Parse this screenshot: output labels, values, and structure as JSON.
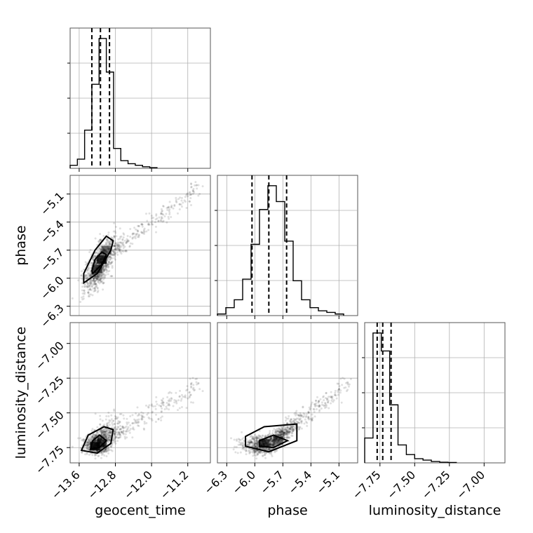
{
  "chart_data": {
    "type": "corner",
    "parameters": [
      "geocent_time",
      "phase",
      "luminosity_distance"
    ],
    "labels": {
      "geocent_time": "geocent_time",
      "phase": "phase",
      "luminosity_distance": "luminosity_distance"
    },
    "ranges": {
      "geocent_time": [
        -13.8,
        -10.7
      ],
      "phase": [
        -6.4,
        -4.9
      ],
      "luminosity_distance": [
        -7.86,
        -6.85
      ]
    },
    "ticks": {
      "geocent_time": {
        "values": [
          -13.6,
          -12.8,
          -12.0,
          -11.2
        ],
        "labels": [
          "−13.6",
          "−12.8",
          "−12.0",
          "−11.2"
        ]
      },
      "phase": {
        "values": [
          -6.3,
          -6.0,
          -5.7,
          -5.4,
          -5.1
        ],
        "labels": [
          "−6.3",
          "−6.0",
          "−5.7",
          "−5.4",
          "−5.1"
        ]
      },
      "luminosity_distance": {
        "values": [
          -7.75,
          -7.5,
          -7.25,
          -7.0
        ],
        "labels": [
          "−7.75",
          "−7.50",
          "−7.25",
          "−7.00"
        ]
      }
    },
    "marginals": {
      "geocent_time": {
        "bin_edges": [
          -13.8,
          -13.64,
          -13.48,
          -13.32,
          -13.16,
          -13.0,
          -12.84,
          -12.68,
          -12.52,
          -12.36,
          -12.2,
          -12.04,
          -11.88
        ],
        "counts": [
          0.02,
          0.06,
          0.25,
          0.55,
          0.85,
          0.63,
          0.13,
          0.05,
          0.03,
          0.02,
          0.01,
          0.004
        ],
        "quantiles": [
          -13.32,
          -13.13,
          -12.93
        ]
      },
      "phase": {
        "bin_edges": [
          -6.4,
          -6.31,
          -6.22,
          -6.13,
          -6.04,
          -5.95,
          -5.86,
          -5.77,
          -5.68,
          -5.59,
          -5.5,
          -5.41,
          -5.32,
          -5.23,
          -5.14,
          -5.05
        ],
        "counts": [
          0.01,
          0.05,
          0.1,
          0.23,
          0.45,
          0.67,
          0.82,
          0.72,
          0.47,
          0.22,
          0.1,
          0.05,
          0.03,
          0.02,
          0.01
        ],
        "quantiles": [
          -6.03,
          -5.85,
          -5.66
        ]
      },
      "luminosity_distance": {
        "bin_edges": [
          -7.86,
          -7.8,
          -7.74,
          -7.68,
          -7.62,
          -7.56,
          -7.5,
          -7.44,
          -7.38,
          -7.32,
          -7.26,
          -7.2
        ],
        "counts": [
          0.18,
          0.94,
          0.81,
          0.42,
          0.13,
          0.06,
          0.03,
          0.02,
          0.01,
          0.005,
          0.003
        ],
        "quantiles": [
          -7.77,
          -7.73,
          -7.67
        ]
      }
    },
    "scatter_model": {
      "seed": 11,
      "n": 1200,
      "mean": {
        "geocent_time": -13.15,
        "phase": -5.85,
        "luminosity_distance": -7.73
      },
      "core_sd": {
        "geocent_time": 0.16,
        "phase": 0.1
      },
      "tail": {
        "geocent_time": [
          -12.8,
          -10.9
        ],
        "phase": [
          -5.7,
          -5.0
        ],
        "luminosity_distance": [
          -7.6,
          -6.85
        ]
      }
    },
    "contours": {
      "geocent_time|phase": [
        [
          [
            -13.5,
            -6.05
          ],
          [
            -13.2,
            -5.95
          ],
          [
            -12.9,
            -5.7
          ],
          [
            -12.85,
            -5.6
          ],
          [
            -13.0,
            -5.55
          ],
          [
            -13.25,
            -5.7
          ],
          [
            -13.5,
            -5.95
          ]
        ],
        [
          [
            -13.3,
            -5.95
          ],
          [
            -13.1,
            -5.85
          ],
          [
            -13.0,
            -5.75
          ],
          [
            -13.1,
            -5.72
          ],
          [
            -13.25,
            -5.8
          ],
          [
            -13.32,
            -5.92
          ]
        ]
      ],
      "geocent_time|luminosity_distance": [
        [
          [
            -13.55,
            -7.77
          ],
          [
            -13.2,
            -7.79
          ],
          [
            -12.9,
            -7.72
          ],
          [
            -12.85,
            -7.62
          ],
          [
            -13.05,
            -7.6
          ],
          [
            -13.4,
            -7.66
          ]
        ],
        [
          [
            -13.35,
            -7.76
          ],
          [
            -13.15,
            -7.75
          ],
          [
            -13.0,
            -7.7
          ],
          [
            -13.15,
            -7.66
          ],
          [
            -13.3,
            -7.7
          ]
        ]
      ],
      "phase|luminosity_distance": [
        [
          [
            -6.1,
            -7.74
          ],
          [
            -5.85,
            -7.78
          ],
          [
            -5.55,
            -7.7
          ],
          [
            -5.55,
            -7.58
          ],
          [
            -5.9,
            -7.6
          ],
          [
            -6.1,
            -7.67
          ]
        ],
        [
          [
            -5.95,
            -7.74
          ],
          [
            -5.8,
            -7.75
          ],
          [
            -5.65,
            -7.7
          ],
          [
            -5.8,
            -7.66
          ],
          [
            -5.95,
            -7.7
          ]
        ]
      ]
    },
    "density_cells": {
      "geocent_time|phase": [
        [
          -13.2,
          -5.9,
          0.6
        ],
        [
          -13.1,
          -5.8,
          0.75
        ],
        [
          -13.0,
          -5.7,
          0.5
        ]
      ],
      "geocent_time|luminosity_distance": [
        [
          -13.25,
          -7.74,
          0.85
        ],
        [
          -13.1,
          -7.72,
          0.6
        ]
      ],
      "phase|luminosity_distance": [
        [
          -5.9,
          -7.72,
          0.7
        ],
        [
          -5.75,
          -7.7,
          0.5
        ]
      ]
    }
  }
}
